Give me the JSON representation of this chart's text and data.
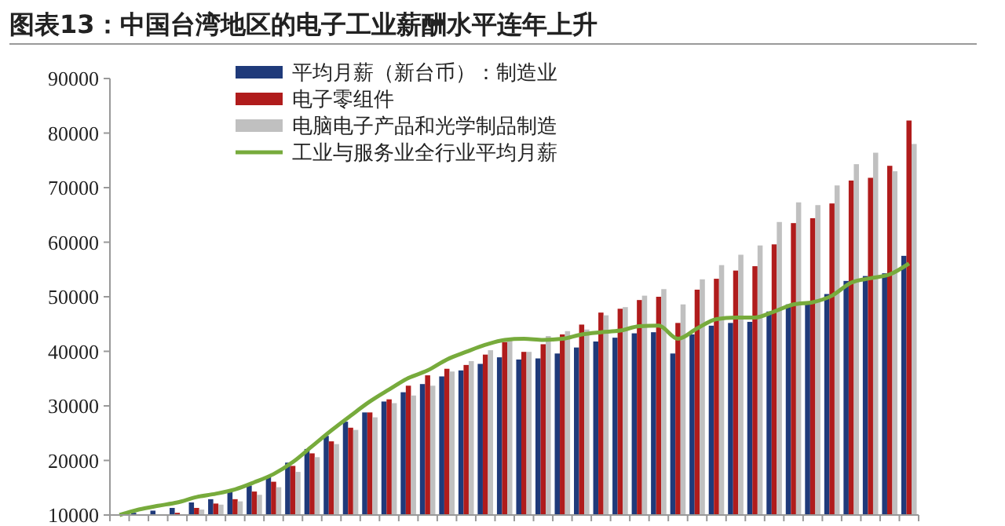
{
  "chart_data": {
    "type": "bar",
    "title": "图表13：中国台湾地区的电子工业薪酬水平连年上升",
    "categories": [
      null,
      null,
      null,
      null,
      null,
      null,
      null,
      null,
      null,
      null,
      null,
      null,
      null,
      null,
      null,
      null,
      null,
      null,
      null,
      null,
      null,
      null,
      null,
      null,
      null,
      null,
      null,
      null,
      null,
      null,
      null,
      null,
      null,
      null,
      null,
      null,
      null,
      null,
      null,
      null,
      null,
      null
    ],
    "series": [
      {
        "name": "平均月薪（新台币）：制造业",
        "color": "#1f3a7a",
        "values": [
          null,
          10400,
          10800,
          11300,
          12300,
          12900,
          14200,
          15400,
          17100,
          19600,
          22100,
          24500,
          27100,
          28800,
          30800,
          32500,
          34000,
          35400,
          36500,
          37700,
          38900,
          38500,
          38700,
          39600,
          40700,
          41800,
          42500,
          43300,
          43500,
          39600,
          43100,
          44700,
          45200,
          45400,
          47300,
          48600,
          48800,
          50500,
          52900,
          53800,
          54300,
          57500
        ]
      },
      {
        "name": "电子零组件",
        "color": "#b01c1c",
        "values": [
          null,
          null,
          null,
          10400,
          11300,
          12100,
          12900,
          14300,
          16100,
          19000,
          21300,
          23500,
          26000,
          28800,
          31200,
          33700,
          35600,
          36800,
          37500,
          39400,
          41700,
          39900,
          41300,
          43100,
          44900,
          47100,
          47800,
          49400,
          50000,
          45200,
          51300,
          53300,
          54800,
          55600,
          59600,
          63500,
          64400,
          67100,
          71300,
          71800,
          74000,
          82300
        ]
      },
      {
        "name": "电脑电子产品和光学制品制造",
        "color": "#c0c0c0",
        "values": [
          10100,
          10100,
          10100,
          null,
          11000,
          11900,
          12500,
          13700,
          15100,
          17900,
          20600,
          23000,
          25600,
          27900,
          30500,
          31900,
          33700,
          36300,
          38200,
          40200,
          42300,
          39900,
          42800,
          43700,
          44000,
          46600,
          48100,
          50200,
          51400,
          48600,
          53200,
          55800,
          57700,
          59400,
          63700,
          67300,
          66800,
          70400,
          74300,
          76400,
          73000,
          78000
        ]
      },
      {
        "name": "工业与服务业全行业平均月薪",
        "type": "line",
        "color": "#77ab3c",
        "values": [
          10000,
          11000,
          11700,
          12300,
          13300,
          13900,
          14700,
          16000,
          17500,
          19700,
          22600,
          25500,
          28200,
          30800,
          33000,
          35100,
          36500,
          38500,
          39900,
          41200,
          42100,
          42300,
          42100,
          42300,
          43100,
          43500,
          43800,
          44600,
          44700,
          42300,
          44200,
          45900,
          46200,
          46200,
          47300,
          48600,
          49000,
          50200,
          52600,
          53400,
          54100,
          56100
        ]
      }
    ],
    "ylim": [
      10000,
      90000
    ],
    "yticks": [
      10000,
      20000,
      30000,
      40000,
      50000,
      60000,
      70000,
      80000,
      90000
    ],
    "legend": "top left",
    "grid": false
  }
}
